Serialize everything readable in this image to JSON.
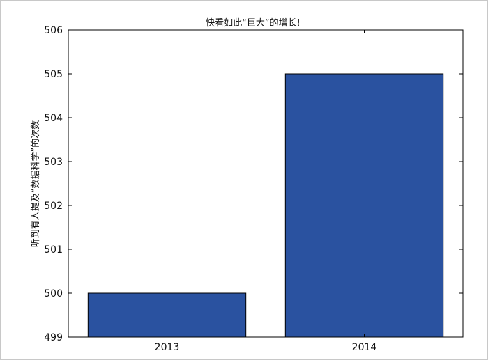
{
  "chart_data": {
    "type": "bar",
    "title": "快看如此“巨大”的增长!",
    "xlabel": "",
    "ylabel": "听到有人提及“数据科学”的次数",
    "categories": [
      "2013",
      "2014"
    ],
    "values": [
      500,
      505
    ],
    "ylim": [
      499,
      506
    ],
    "yticks": [
      499,
      500,
      501,
      502,
      503,
      504,
      505,
      506
    ],
    "grid": false,
    "legend": null,
    "bar_color": "#2a52a0",
    "edge_color": "#000000"
  }
}
